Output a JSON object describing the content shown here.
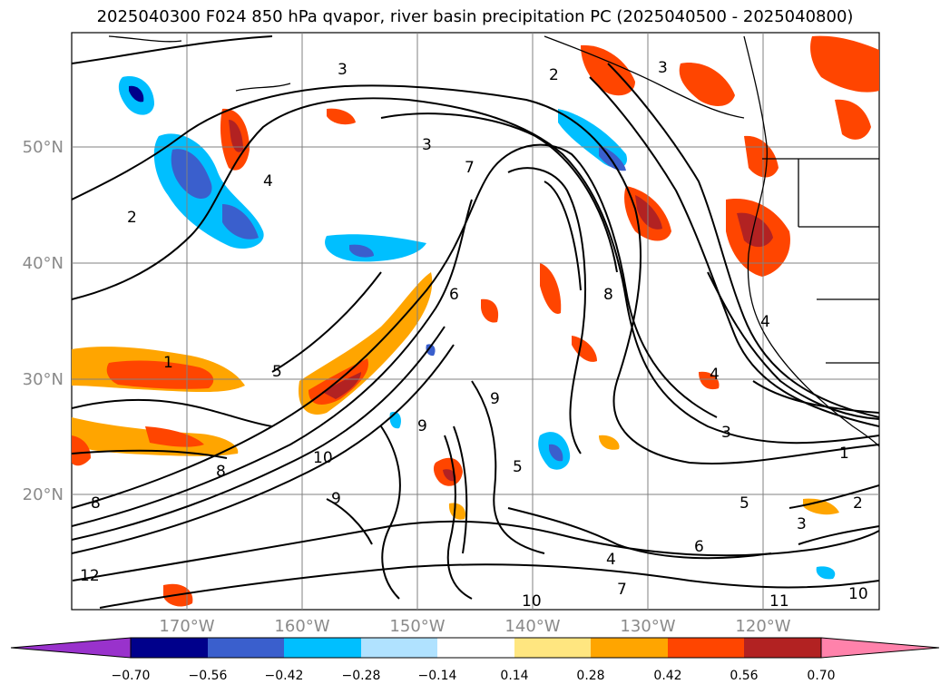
{
  "title": "2025040300 F024 850 hPa qvapor, river basin precipitation PC (2025040500 - 2025040800)",
  "map": {
    "lat_labels": [
      "50°N",
      "40°N",
      "30°N",
      "20°N"
    ],
    "lon_labels": [
      "170°W",
      "160°W",
      "150°W",
      "140°W",
      "130°W",
      "120°W"
    ],
    "contour_labels": [
      "1",
      "2",
      "3",
      "3",
      "4",
      "5",
      "6",
      "7",
      "8",
      "9",
      "9",
      "10",
      "10",
      "11",
      "12",
      "2",
      "3",
      "4",
      "5",
      "6",
      "7",
      "8",
      "9",
      "10",
      "4",
      "5",
      "3",
      "2",
      "1",
      "8",
      "4",
      "3"
    ],
    "colors": {
      "contour": "#000000",
      "grid": "#808080",
      "land_outline": "#000000"
    }
  },
  "colorbar": {
    "labels": [
      "−0.70",
      "−0.56",
      "−0.42",
      "−0.28",
      "−0.14",
      "0.14",
      "0.28",
      "0.42",
      "0.56",
      "0.70"
    ],
    "colors": [
      "#9932cc",
      "#00008b",
      "#3a5fcd",
      "#00bfff",
      "#b0e2ff",
      "#ffffff",
      "#ffe680",
      "#ffa500",
      "#ff4500",
      "#b22222",
      "#ff82ab"
    ]
  }
}
